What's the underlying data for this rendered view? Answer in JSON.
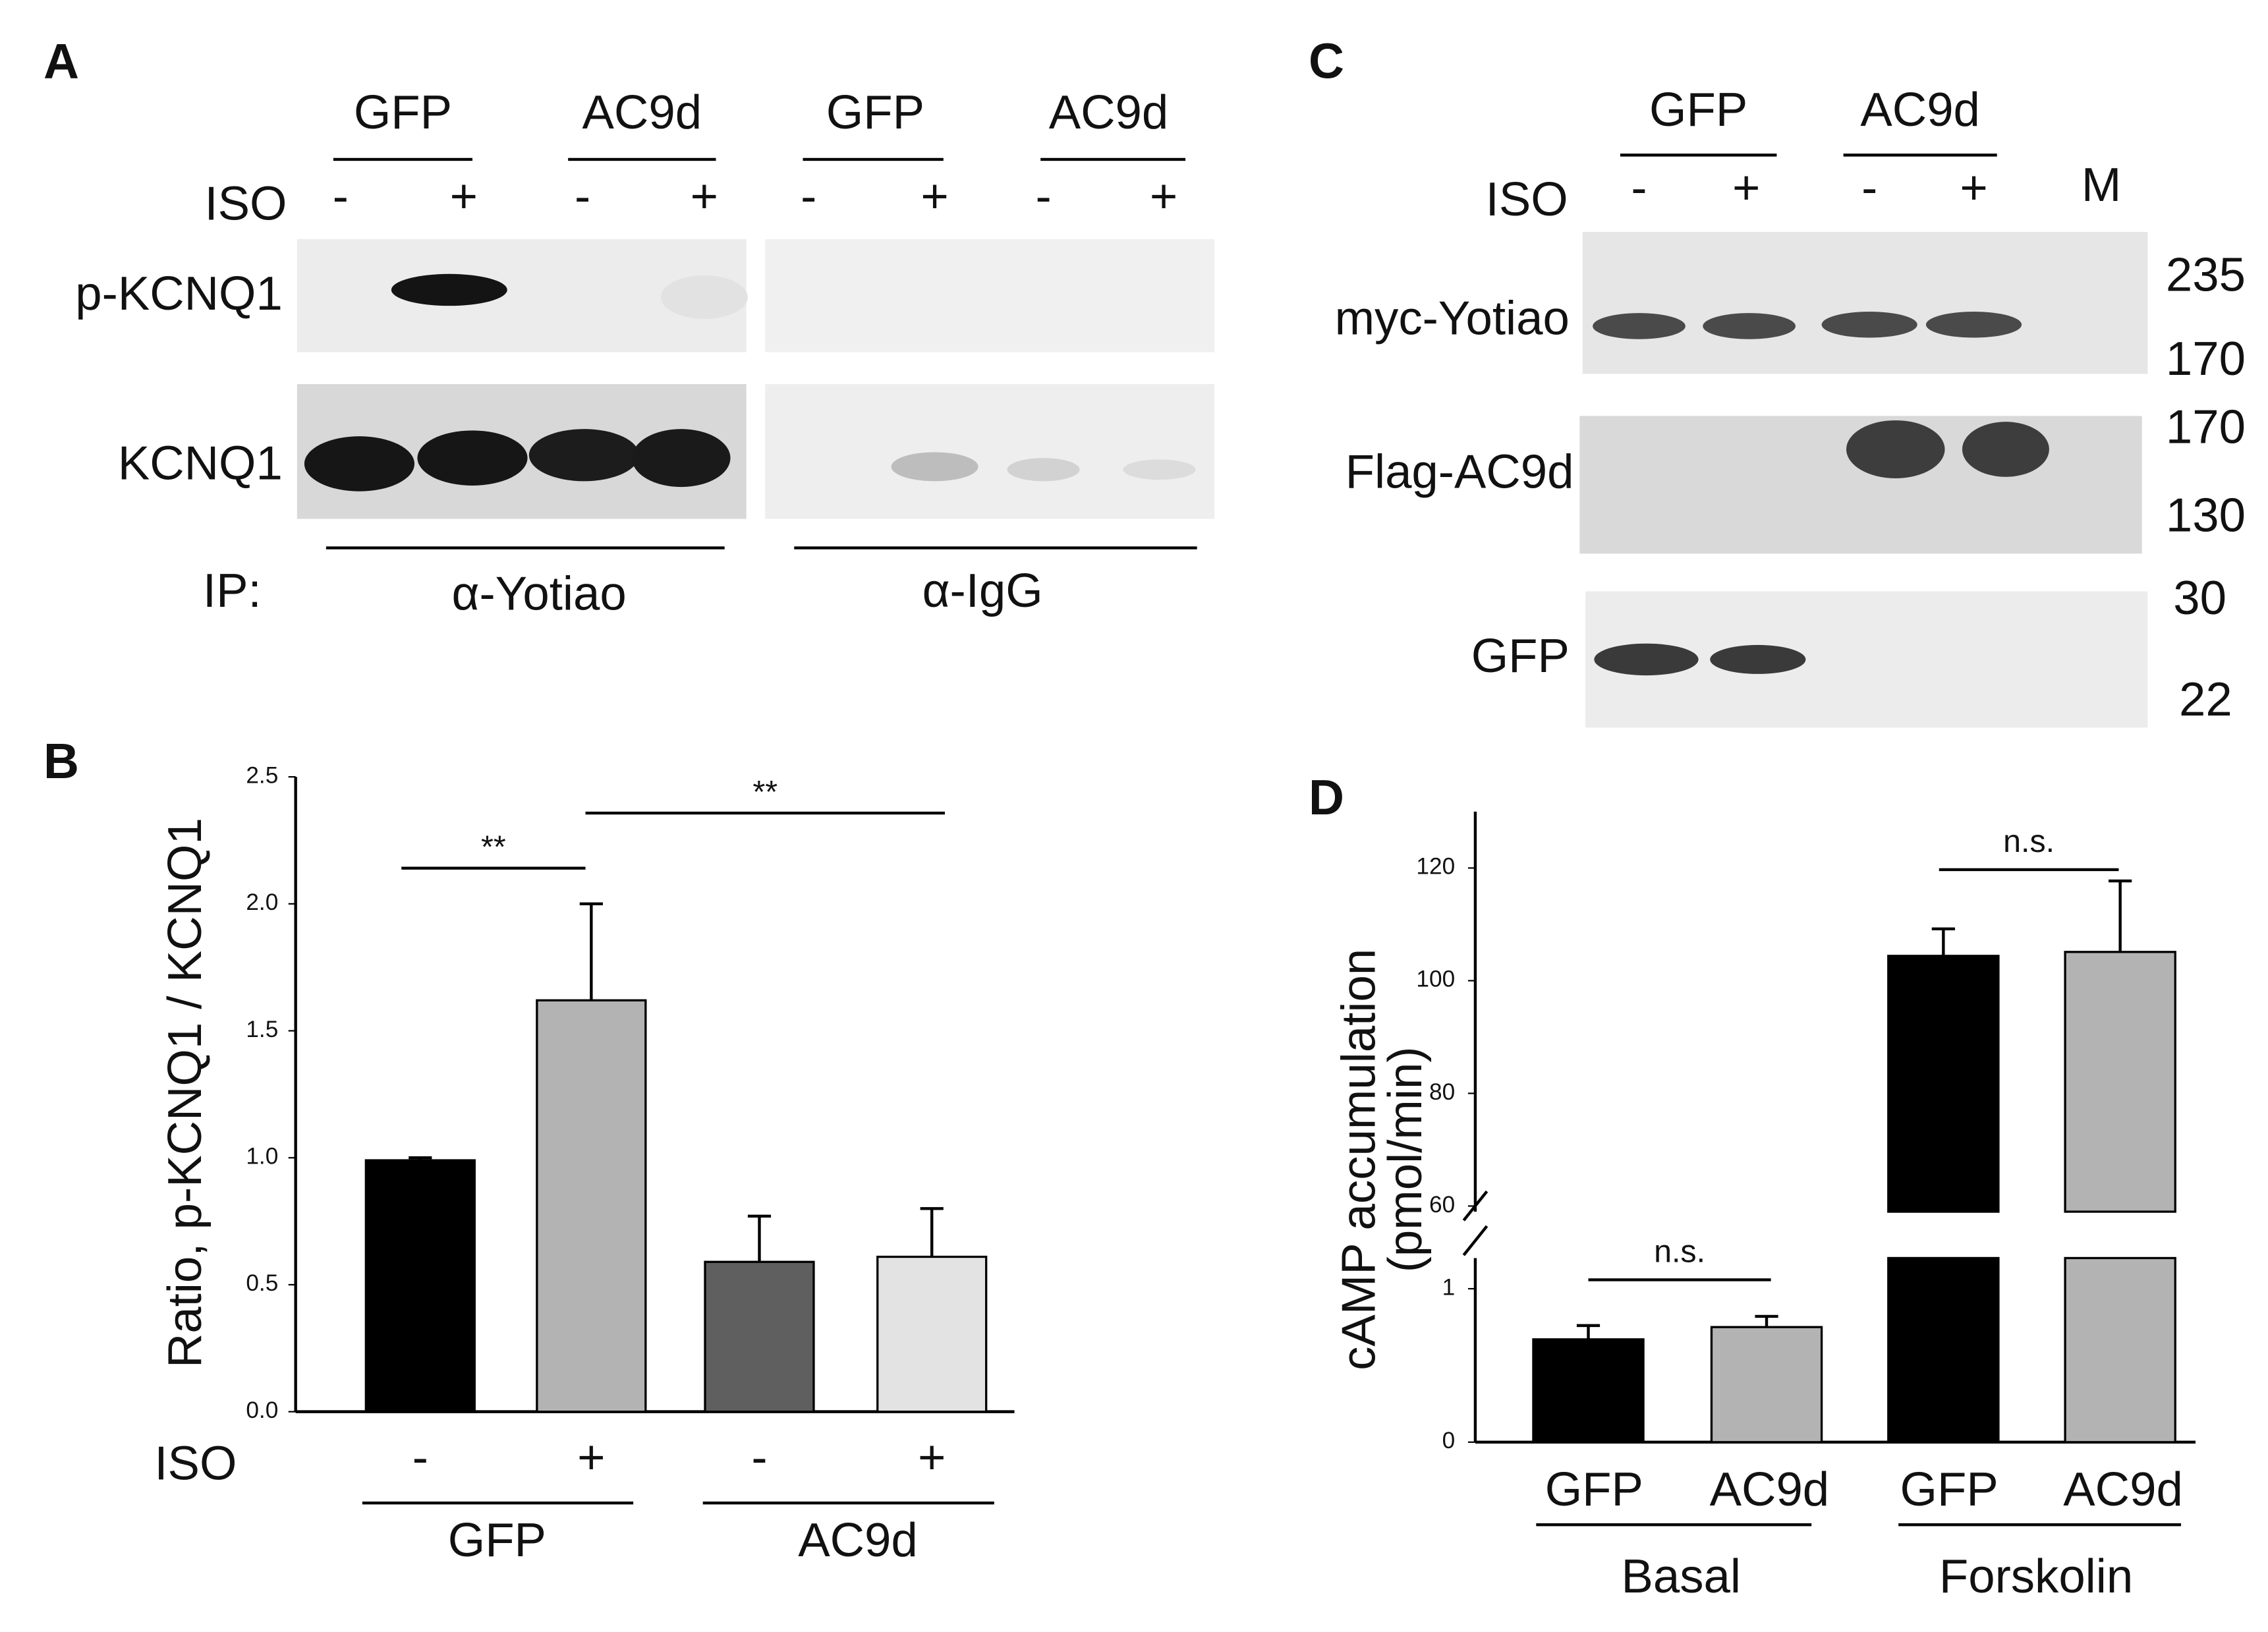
{
  "panel_a": {
    "letter": "A",
    "groups": [
      "GFP",
      "AC9d",
      "GFP",
      "AC9d"
    ],
    "iso_label": "ISO",
    "iso": [
      "-",
      "+",
      "-",
      "+",
      "-",
      "+",
      "-",
      "+"
    ],
    "rows": [
      "p-KCNQ1",
      "KCNQ1"
    ],
    "ip_label": "IP:",
    "ip": [
      "α-Yotiao",
      "α-IgG"
    ]
  },
  "panel_c": {
    "letter": "C",
    "groups": [
      "GFP",
      "AC9d"
    ],
    "iso_label": "ISO",
    "iso": [
      "-",
      "+",
      "-",
      "+"
    ],
    "marker": "M",
    "rows": [
      {
        "label": "myc-Yotiao",
        "markers": [
          "235",
          "170"
        ]
      },
      {
        "label": "Flag-AC9d",
        "markers": [
          "170",
          "130"
        ]
      },
      {
        "label": "GFP",
        "markers": [
          "30",
          "22"
        ]
      }
    ]
  },
  "chart_data": [
    {
      "type": "bar",
      "letter": "B",
      "y_label": "Ratio, p-KCNQ1 / KCNQ1",
      "iso_label": "ISO",
      "categories": [
        "-",
        "+",
        "-",
        "+"
      ],
      "groups": [
        "GFP",
        "AC9d"
      ],
      "values": [
        0.99,
        1.62,
        0.59,
        0.61
      ],
      "errors": [
        0.01,
        0.38,
        0.18,
        0.19
      ],
      "colors": [
        "#000000",
        "#b3b3b3",
        "#5f5f5f",
        "#e2e3e2"
      ],
      "annotations": [
        "**",
        "**"
      ],
      "ylim": [
        0,
        2.5
      ],
      "yticks": [
        {
          "value": 0,
          "label": "0.0"
        },
        {
          "value": 0.5,
          "label": "0.5"
        },
        {
          "value": 1,
          "label": "1.0"
        },
        {
          "value": 1.5,
          "label": "1.5"
        },
        {
          "value": 2,
          "label": "2.0"
        },
        2.5
      ]
    },
    {
      "type": "broken-bar",
      "letter": "D",
      "y_label": [
        "cAMP accumulation",
        "(pmol/min)"
      ],
      "categories": [
        "GFP",
        "AC9d",
        "GFP",
        "AC9d"
      ],
      "groups": [
        "Basal",
        "Forskolin"
      ],
      "values": [
        0.67,
        0.75,
        104.4,
        105.1
      ],
      "errors": [
        0.09,
        0.07,
        4.8,
        12.6
      ],
      "colors": [
        "#000000",
        "#b3b3b3",
        "#000000",
        "#b3b3b3"
      ],
      "annotations": [
        "n.s.",
        "n.s."
      ],
      "ylim_lower": [
        0,
        1.2
      ],
      "ylim_upper": [
        59,
        130
      ],
      "yticks": [
        0,
        1,
        60,
        80,
        100,
        120
      ]
    }
  ]
}
